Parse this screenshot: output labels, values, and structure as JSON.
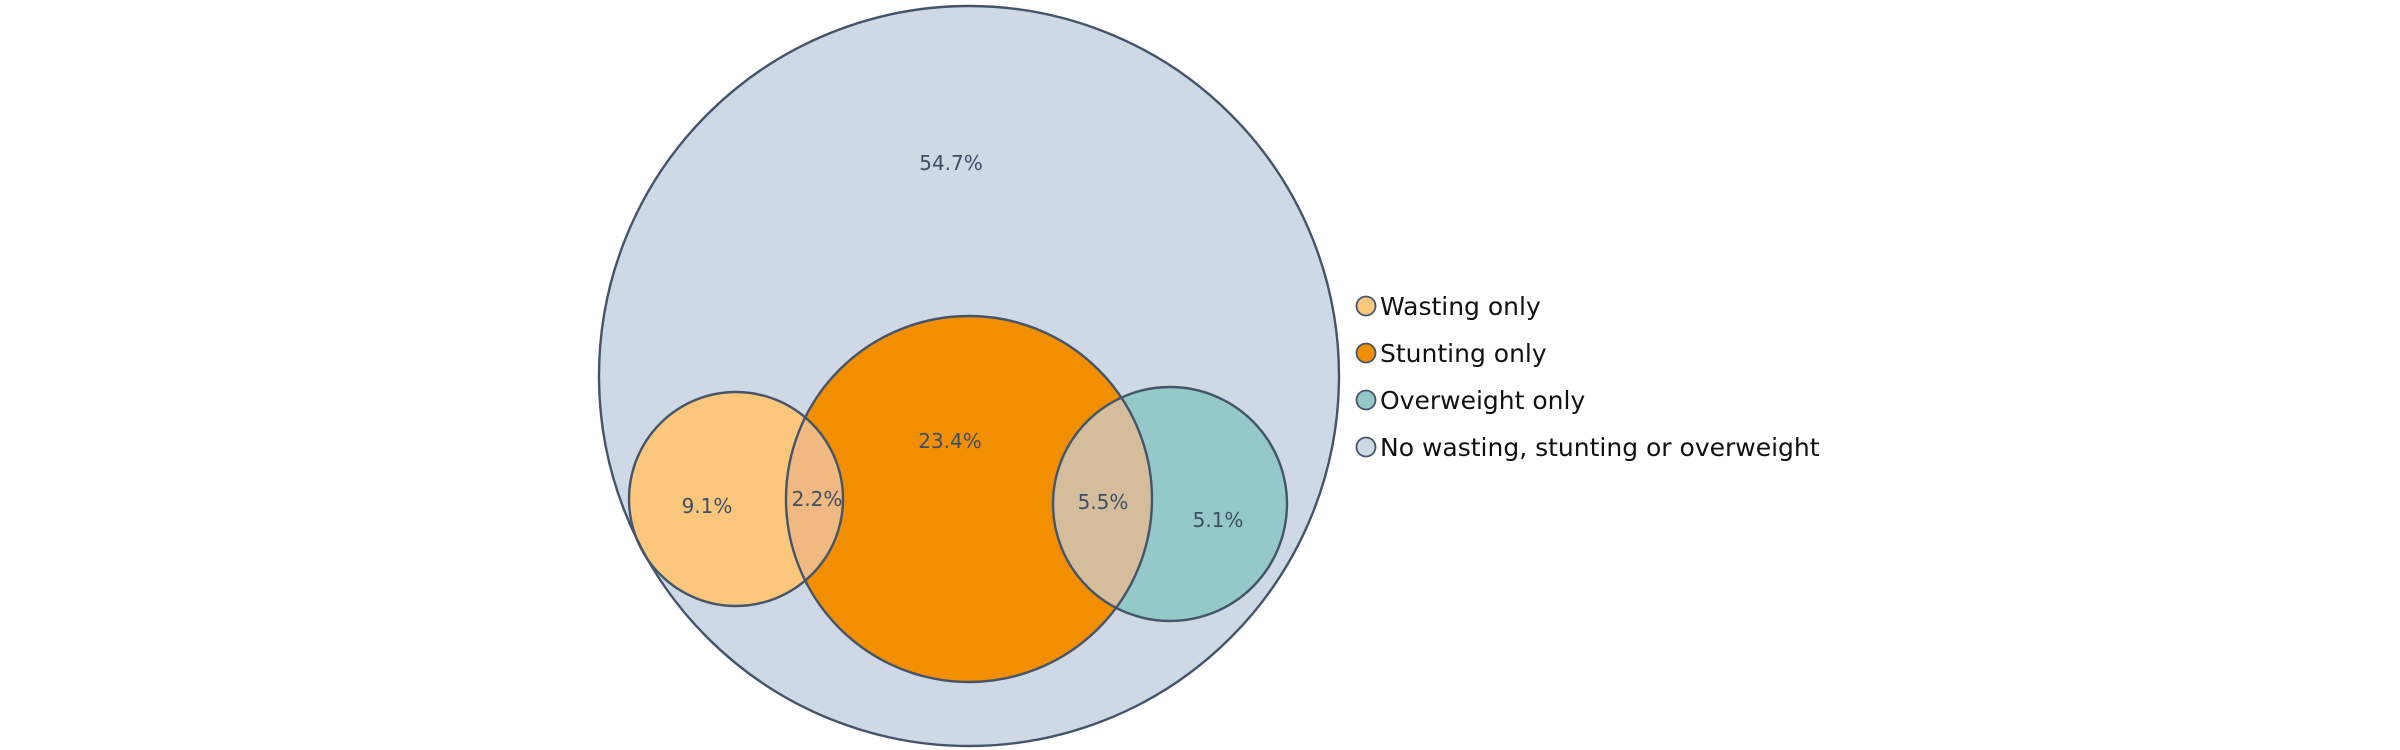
{
  "diagram": {
    "type": "euler",
    "sets": [
      {
        "id": "none",
        "label": "No wasting, stunting or overweight",
        "color": "#cfd8e5"
      },
      {
        "id": "wasting",
        "label": "Wasting only",
        "color": "#fbc77c"
      },
      {
        "id": "stunting",
        "label": "Stunting only",
        "color": "#f28f00"
      },
      {
        "id": "overweight",
        "label": "Overweight only",
        "color": "#95c8c9"
      }
    ],
    "regions": [
      {
        "id": "none",
        "value": "54.7%"
      },
      {
        "id": "wasting",
        "value": "9.1%"
      },
      {
        "id": "wasting_stunting",
        "value": "2.2%",
        "color": "#f1b982"
      },
      {
        "id": "stunting",
        "value": "23.4%"
      },
      {
        "id": "stunting_overweight",
        "value": "5.5%",
        "color": "#d5bd9c"
      },
      {
        "id": "overweight",
        "value": "5.1%"
      }
    ],
    "legend": {
      "items": [
        {
          "label": "Wasting only",
          "color": "#fbc77c"
        },
        {
          "label": "Stunting only",
          "color": "#f28f00"
        },
        {
          "label": "Overweight only",
          "color": "#95c8c9"
        },
        {
          "label": "No wasting, stunting or overweight",
          "color": "#cfd8e5"
        }
      ]
    },
    "outline_color": "#44546a"
  }
}
